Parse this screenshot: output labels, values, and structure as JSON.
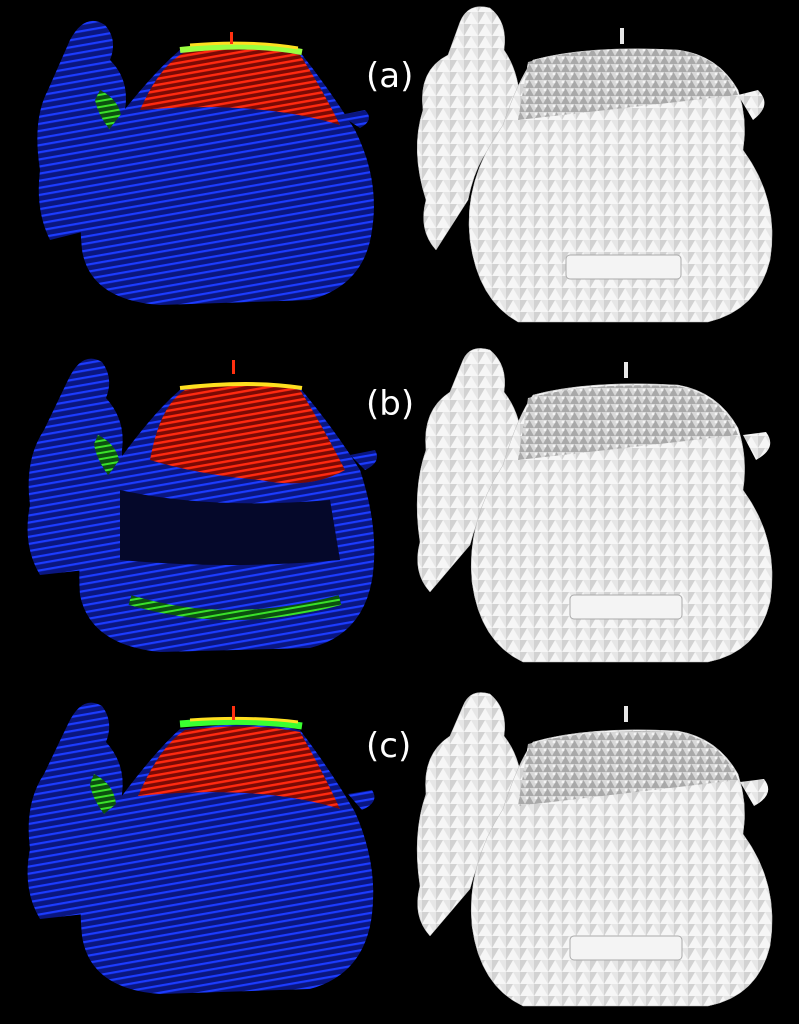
{
  "rows": [
    {
      "label": "(a)"
    },
    {
      "label": "(b)"
    },
    {
      "label": "(c)"
    }
  ],
  "colors": {
    "background": "#000000",
    "point_blue": "#1530d8",
    "point_red": "#e01a10",
    "point_green": "#2fd020",
    "point_yellow": "#e8d820",
    "mesh_light": "#f2f2f2",
    "mesh_shade": "#b8b8b8"
  },
  "panels": {
    "left": "point-cloud-scan",
    "right": "reconstructed-mesh"
  }
}
